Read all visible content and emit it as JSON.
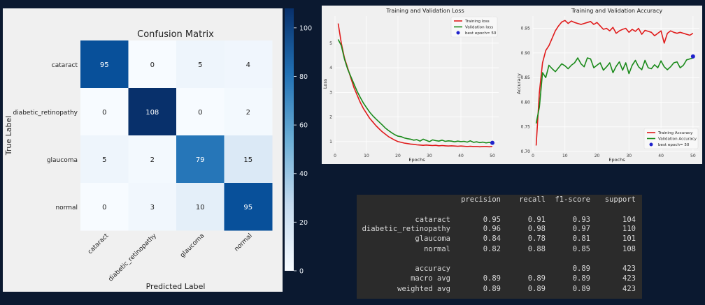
{
  "chart_data": [
    {
      "type": "heatmap",
      "title": "Confusion Matrix",
      "xlabel": "Predicted Label",
      "ylabel": "True Label",
      "x_categories": [
        "cataract",
        "diabetic_retinopathy",
        "glaucoma",
        "normal"
      ],
      "y_categories": [
        "cataract",
        "diabetic_retinopathy",
        "glaucoma",
        "normal"
      ],
      "values": [
        [
          95,
          0,
          5,
          4
        ],
        [
          0,
          108,
          0,
          2
        ],
        [
          5,
          2,
          79,
          15
        ],
        [
          0,
          3,
          10,
          95
        ]
      ],
      "colormap": "Blues",
      "colorbar_ticks": [
        0,
        20,
        40,
        60,
        80,
        100
      ],
      "vmin": 0,
      "vmax": 108
    },
    {
      "type": "line",
      "title": "Training and Validation Loss",
      "xlabel": "Epochs",
      "ylabel": "Loss",
      "xlim": [
        0,
        52
      ],
      "ylim": [
        0.6,
        6.1
      ],
      "xticks": [
        0,
        10,
        20,
        30,
        40,
        50
      ],
      "yticks": [
        1,
        2,
        3,
        4,
        5
      ],
      "grid": true,
      "legend_position": "top-right",
      "x": [
        1,
        2,
        3,
        4,
        5,
        6,
        7,
        8,
        9,
        10,
        11,
        12,
        13,
        14,
        15,
        16,
        17,
        18,
        19,
        20,
        21,
        22,
        23,
        24,
        25,
        26,
        27,
        28,
        29,
        30,
        31,
        32,
        33,
        34,
        35,
        36,
        37,
        38,
        39,
        40,
        41,
        42,
        43,
        44,
        45,
        46,
        47,
        48,
        49,
        50
      ],
      "series": [
        {
          "name": "Training loss",
          "color": "#e01b1b",
          "values": [
            5.8,
            5.0,
            4.4,
            4.0,
            3.6,
            3.2,
            2.9,
            2.6,
            2.35,
            2.15,
            1.95,
            1.8,
            1.65,
            1.52,
            1.4,
            1.3,
            1.2,
            1.13,
            1.06,
            1.0,
            0.97,
            0.94,
            0.92,
            0.9,
            0.89,
            0.87,
            0.86,
            0.85,
            0.86,
            0.85,
            0.84,
            0.85,
            0.83,
            0.84,
            0.83,
            0.82,
            0.83,
            0.82,
            0.81,
            0.82,
            0.81,
            0.8,
            0.81,
            0.8,
            0.8,
            0.79,
            0.8,
            0.8,
            0.79,
            0.8
          ]
        },
        {
          "name": "Validation loss",
          "color": "#1a8a1a",
          "values": [
            5.15,
            4.9,
            4.35,
            3.95,
            3.65,
            3.35,
            3.05,
            2.8,
            2.57,
            2.38,
            2.2,
            2.05,
            1.92,
            1.8,
            1.68,
            1.55,
            1.45,
            1.36,
            1.28,
            1.22,
            1.2,
            1.15,
            1.12,
            1.1,
            1.06,
            1.08,
            1.02,
            1.1,
            1.05,
            1.0,
            1.07,
            1.04,
            1.02,
            1.06,
            1.01,
            1.03,
            1.02,
            0.99,
            1.02,
            1.0,
            1.01,
            0.98,
            1.03,
            0.97,
            0.99,
            0.96,
            0.98,
            0.95,
            0.97,
            0.95
          ]
        }
      ],
      "marker": {
        "label": "best epoch= 50",
        "x": 50,
        "y": 0.95,
        "color": "#1f22cc"
      }
    },
    {
      "type": "line",
      "title": "Training and Validation Accuracy",
      "xlabel": "Epochs",
      "ylabel": "Accuracy",
      "xlim": [
        0,
        52
      ],
      "ylim": [
        0.7,
        0.975
      ],
      "xticks": [
        0,
        10,
        20,
        30,
        40,
        50
      ],
      "yticks": [
        0.7,
        0.75,
        0.8,
        0.85,
        0.9,
        0.95
      ],
      "grid": true,
      "legend_position": "bottom-right",
      "x": [
        1,
        2,
        3,
        4,
        5,
        6,
        7,
        8,
        9,
        10,
        11,
        12,
        13,
        14,
        15,
        16,
        17,
        18,
        19,
        20,
        21,
        22,
        23,
        24,
        25,
        26,
        27,
        28,
        29,
        30,
        31,
        32,
        33,
        34,
        35,
        36,
        37,
        38,
        39,
        40,
        41,
        42,
        43,
        44,
        45,
        46,
        47,
        48,
        49,
        50
      ],
      "series": [
        {
          "name": "Training Accuracy",
          "color": "#e01b1b",
          "values": [
            0.712,
            0.82,
            0.88,
            0.905,
            0.915,
            0.93,
            0.945,
            0.955,
            0.963,
            0.966,
            0.96,
            0.965,
            0.962,
            0.96,
            0.958,
            0.96,
            0.962,
            0.964,
            0.958,
            0.962,
            0.955,
            0.948,
            0.95,
            0.945,
            0.952,
            0.94,
            0.945,
            0.948,
            0.95,
            0.942,
            0.948,
            0.944,
            0.95,
            0.938,
            0.946,
            0.944,
            0.942,
            0.935,
            0.94,
            0.945,
            0.92,
            0.94,
            0.945,
            0.942,
            0.94,
            0.942,
            0.94,
            0.938,
            0.936,
            0.94
          ]
        },
        {
          "name": "Validation Accuracy",
          "color": "#1a8a1a",
          "values": [
            0.757,
            0.79,
            0.86,
            0.85,
            0.875,
            0.868,
            0.862,
            0.87,
            0.878,
            0.874,
            0.868,
            0.875,
            0.88,
            0.89,
            0.878,
            0.872,
            0.89,
            0.888,
            0.87,
            0.875,
            0.88,
            0.865,
            0.872,
            0.88,
            0.86,
            0.873,
            0.882,
            0.865,
            0.88,
            0.858,
            0.875,
            0.885,
            0.872,
            0.866,
            0.885,
            0.87,
            0.868,
            0.876,
            0.87,
            0.884,
            0.872,
            0.866,
            0.872,
            0.88,
            0.882,
            0.87,
            0.875,
            0.886,
            0.888,
            0.89
          ]
        }
      ],
      "marker": {
        "label": "best epoch= 50",
        "x": 50,
        "y": 0.893,
        "color": "#1f22cc"
      }
    },
    {
      "type": "table",
      "columns": [
        "",
        "precision",
        "recall",
        "f1-score",
        "support"
      ],
      "rows": [
        [
          "cataract",
          "0.95",
          "0.91",
          "0.93",
          "104"
        ],
        [
          "diabetic_retinopathy",
          "0.96",
          "0.98",
          "0.97",
          "110"
        ],
        [
          "glaucoma",
          "0.84",
          "0.78",
          "0.81",
          "101"
        ],
        [
          "normal",
          "0.82",
          "0.88",
          "0.85",
          "108"
        ],
        [
          "",
          "",
          "",
          "",
          ""
        ],
        [
          "accuracy",
          "",
          "",
          "0.89",
          "423"
        ],
        [
          "macro avg",
          "0.89",
          "0.89",
          "0.89",
          "423"
        ],
        [
          "weighted avg",
          "0.89",
          "0.89",
          "0.89",
          "423"
        ]
      ]
    }
  ]
}
